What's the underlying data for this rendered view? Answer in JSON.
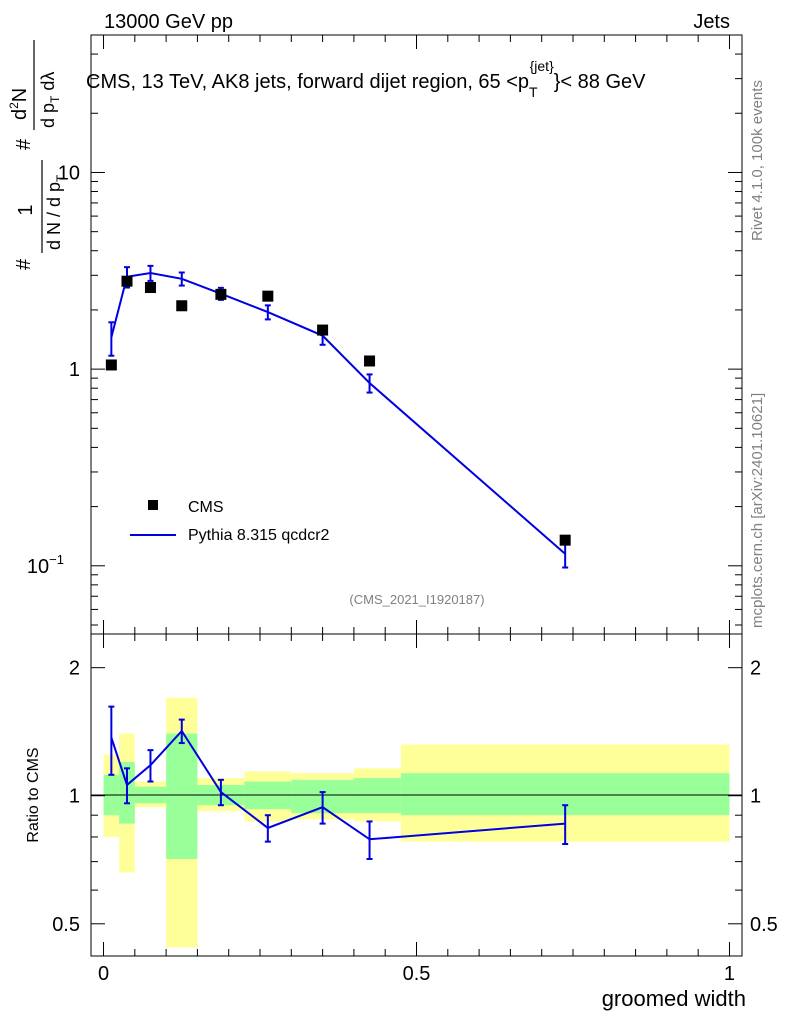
{
  "header": {
    "left": "13000 GeV pp",
    "right": "Jets",
    "title_main": "CMS, 13 TeV, AK8 jets, forward dijet region, 65 <p",
    "title_sup": "{jet}",
    "title_sub": "T",
    "title_tail": "}< 88 GeV"
  },
  "side": {
    "rivet": "Rivet 4.1.0,  100k events",
    "mcplots": "mcplots.cern.ch [arXiv:2401.10621]"
  },
  "analysis_id": "(CMS_2021_I1920187)",
  "ylabel_main": {
    "hash1": "#",
    "one": "1",
    "frac_den": "d N / d p",
    "sub_t": "T",
    "hash2": "#",
    "num2": "d",
    "num2_sup": "2",
    "num2_tail": "N",
    "den2": "d p",
    "den2_sub": "T",
    "den2_tail": " dλ"
  },
  "ylabel_ratio": "Ratio to CMS",
  "xlabel": "groomed width",
  "legend": {
    "data_label": "CMS",
    "mc_label": "Pythia 8.315 qcdcr2"
  },
  "colors": {
    "mc": "#0000e0",
    "band_green": "#99ff99",
    "band_yellow": "#ffff99",
    "data": "#000000"
  },
  "chart_data": [
    {
      "type": "scatter",
      "panel": "main",
      "yscale": "log",
      "xlim": [
        -0.02,
        1.02
      ],
      "ylim": [
        0.045,
        50
      ],
      "yticks": [
        {
          "v": 0.1,
          "t": "10",
          "sup": "−1"
        },
        {
          "v": 1,
          "t": "1",
          "sup": ""
        },
        {
          "v": 10,
          "t": "10",
          "sup": ""
        }
      ],
      "series": [
        {
          "name": "CMS",
          "x": [
            0.0125,
            0.0375,
            0.075,
            0.125,
            0.1875,
            0.2625,
            0.35,
            0.425,
            0.7375
          ],
          "y": [
            1.05,
            2.8,
            2.6,
            2.1,
            2.4,
            2.35,
            1.58,
            1.1,
            0.135
          ]
        },
        {
          "name": "Pythia 8.315 qcdcr2",
          "x": [
            0.0125,
            0.0375,
            0.075,
            0.125,
            0.1875,
            0.2625,
            0.35,
            0.425,
            0.7375
          ],
          "y": [
            1.45,
            2.95,
            3.08,
            2.88,
            2.42,
            1.95,
            1.48,
            0.85,
            0.115
          ],
          "err": [
            0.28,
            0.35,
            0.27,
            0.22,
            0.17,
            0.16,
            0.15,
            0.09,
            0.017
          ]
        }
      ]
    },
    {
      "type": "line",
      "panel": "ratio",
      "ylabel": "Ratio to CMS",
      "xlabel": "groomed width",
      "xlim": [
        -0.02,
        1.02
      ],
      "ylim": [
        0.42,
        2.4
      ],
      "yticks": [
        0.5,
        1,
        2
      ],
      "xticks": [
        0,
        0.5,
        1
      ],
      "bins": [
        0,
        0.025,
        0.05,
        0.1,
        0.15,
        0.225,
        0.3,
        0.4,
        0.475,
        1.0
      ],
      "band_green": [
        [
          0.9,
          1.12
        ],
        [
          0.86,
          1.2
        ],
        [
          0.96,
          1.05
        ],
        [
          0.71,
          1.4
        ],
        [
          0.95,
          1.06
        ],
        [
          0.93,
          1.08
        ],
        [
          0.91,
          1.09
        ],
        [
          0.91,
          1.1
        ],
        [
          0.9,
          1.13
        ]
      ],
      "band_yellow": [
        [
          0.8,
          1.25
        ],
        [
          0.66,
          1.4
        ],
        [
          0.94,
          1.08
        ],
        [
          0.44,
          1.7
        ],
        [
          0.92,
          1.1
        ],
        [
          0.87,
          1.14
        ],
        [
          0.88,
          1.13
        ],
        [
          0.87,
          1.16
        ],
        [
          0.78,
          1.32
        ]
      ],
      "series": [
        {
          "name": "Pythia 8.315 qcdcr2",
          "x": [
            0.0125,
            0.0375,
            0.075,
            0.125,
            0.1875,
            0.2625,
            0.35,
            0.425,
            0.7375
          ],
          "y": [
            1.37,
            1.06,
            1.18,
            1.42,
            1.02,
            0.84,
            0.94,
            0.79,
            0.86
          ],
          "err": [
            0.25,
            0.1,
            0.1,
            0.09,
            0.07,
            0.06,
            0.08,
            0.08,
            0.09
          ]
        }
      ]
    }
  ]
}
